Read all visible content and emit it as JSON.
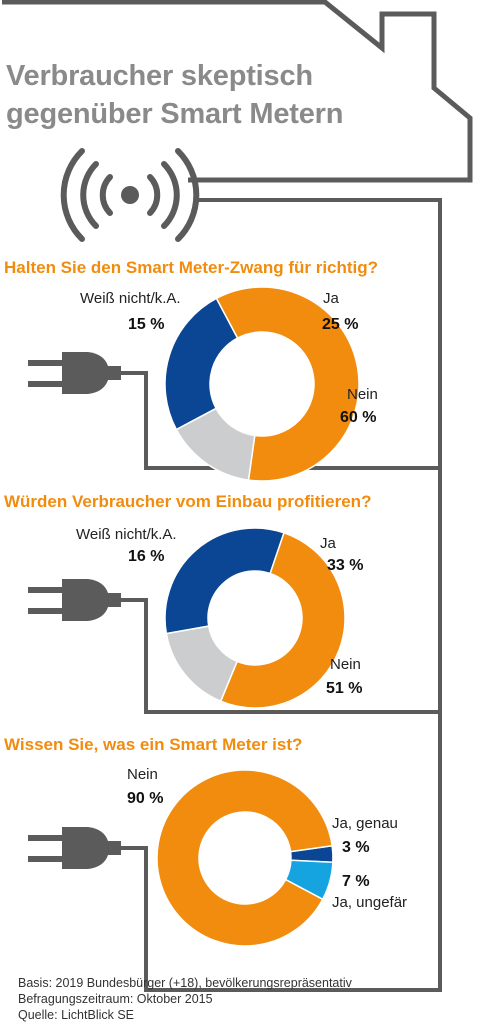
{
  "title": {
    "line1": "Verbraucher skeptisch",
    "line2": "gegenüber Smart Metern"
  },
  "icons": {
    "signal": "wifi-signal-icon",
    "plug": "power-plug-icon"
  },
  "colors": {
    "orange": "#f18c0e",
    "dark_blue": "#0b4694",
    "light_blue": "#16a4e0",
    "gray": "#cccdce",
    "frame": "#5b5b5b"
  },
  "chart_data": [
    {
      "type": "pie",
      "title": "Halten Sie den Smart Meter-Zwang für richtig?",
      "slices": [
        {
          "label": "Ja",
          "value": 25,
          "display": "25 %",
          "color": "#0b4694"
        },
        {
          "label": "Nein",
          "value": 60,
          "display": "60 %",
          "color": "#f18c0e"
        },
        {
          "label": "Weiß nicht/k.A.",
          "value": 15,
          "display": "15 %",
          "color": "#cccdce"
        }
      ]
    },
    {
      "type": "pie",
      "title": "Würden Verbraucher vom Einbau profitieren?",
      "slices": [
        {
          "label": "Ja",
          "value": 33,
          "display": "33 %",
          "color": "#0b4694"
        },
        {
          "label": "Nein",
          "value": 51,
          "display": "51 %",
          "color": "#f18c0e"
        },
        {
          "label": "Weiß nicht/k.A.",
          "value": 16,
          "display": "16 %",
          "color": "#cccdce"
        }
      ]
    },
    {
      "type": "pie",
      "title": "Wissen Sie, was ein Smart Meter ist?",
      "slices": [
        {
          "label": "Nein",
          "value": 90,
          "display": "90 %",
          "color": "#f18c0e"
        },
        {
          "label": "Ja, genau",
          "value": 3,
          "display": "3 %",
          "color": "#0b4694"
        },
        {
          "label": "Ja, ungefär",
          "value": 7,
          "display": "7 %",
          "color": "#16a4e0"
        }
      ]
    }
  ],
  "footer": {
    "line1": "Basis: 2019 Bundesbürger (+18), bevölkerungsrepräsentativ",
    "line2": "Befragungszeitraum: Oktober 2015",
    "line3": "Quelle: LichtBlick SE"
  }
}
